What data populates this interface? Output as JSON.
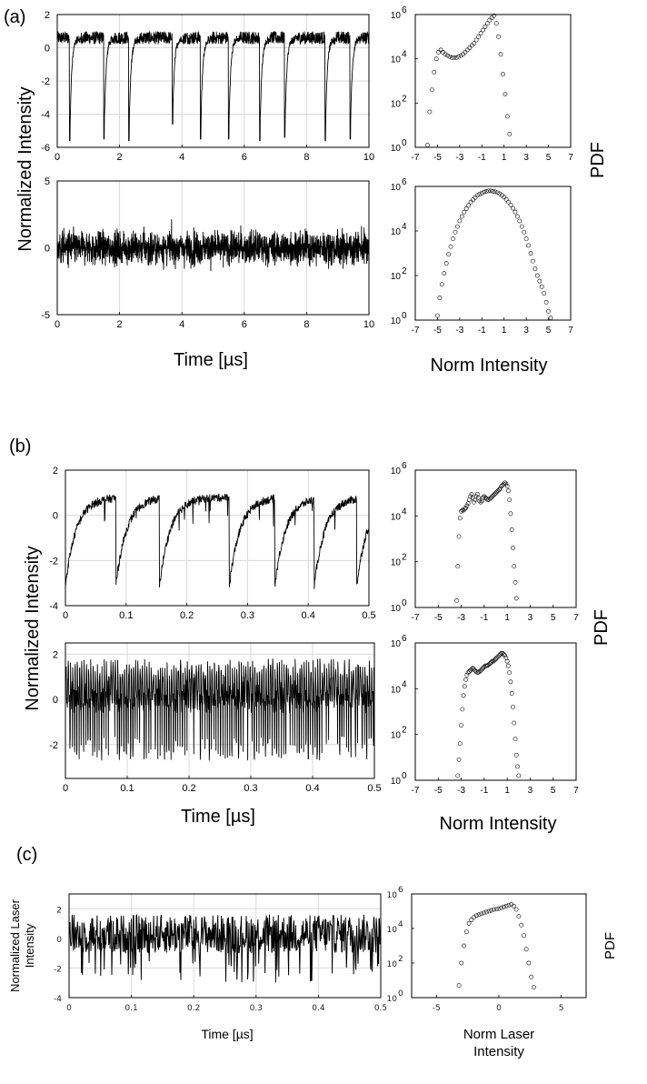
{
  "panels": {
    "a": {
      "label": "(a)",
      "ylabel": "Normalized Intensity",
      "xlabel": "Time [µs]",
      "pdf_xlabel": "Norm Intensity",
      "pdf_ylabel": "PDF"
    },
    "b": {
      "label": "(b)",
      "ylabel": "Normalized Intensity",
      "xlabel": "Time [µs]",
      "pdf_xlabel": "Norm Intensity",
      "pdf_ylabel": "PDF"
    },
    "c": {
      "label": "(c)",
      "ylabel_line1": "Normalized Laser",
      "ylabel_line2": "Intensity",
      "xlabel": "Time [µs]",
      "pdf_xlabel_line1": "Norm Laser",
      "pdf_xlabel_line2": "Intensity",
      "pdf_ylabel": "PDF"
    }
  },
  "chart_data": [
    {
      "id": "a-top-time",
      "type": "line",
      "xlim": [
        0,
        10
      ],
      "ylim": [
        -6,
        2
      ],
      "xticks": [
        "0",
        "2",
        "4",
        "6",
        "8",
        "10"
      ],
      "yticks": [
        "-6",
        "-4",
        "-2",
        "0",
        "2"
      ],
      "baseline": 0.6,
      "noise": 0.3,
      "dropout_times": [
        0.4,
        1.5,
        2.3,
        3.7,
        4.6,
        5.5,
        6.5,
        7.3,
        8.6,
        9.4
      ],
      "dropout_depths": [
        -5.6,
        -5.5,
        -5.6,
        -4.6,
        -5.5,
        -5.5,
        -5.6,
        -5.4,
        -5.6,
        -5.5
      ]
    },
    {
      "id": "a-top-pdf",
      "type": "scatter",
      "yscale": "log",
      "xlim": [
        -7,
        7
      ],
      "ylim": [
        1,
        1000000
      ],
      "xticks": [
        "-7",
        "-5",
        "-3",
        "-1",
        "1",
        "3",
        "5",
        "7"
      ],
      "ytick_exponents": [
        "0",
        "2",
        "4",
        "6"
      ],
      "x": [
        -5.9,
        -5.7,
        -5.5,
        -5.3,
        -5.1,
        -4.9,
        -4.7,
        -4.5,
        -4.3,
        -4.1,
        -3.9,
        -3.7,
        -3.5,
        -3.3,
        -3.1,
        -2.9,
        -2.7,
        -2.5,
        -2.3,
        -2.1,
        -1.9,
        -1.7,
        -1.5,
        -1.3,
        -1.1,
        -0.9,
        -0.7,
        -0.5,
        -0.3,
        -0.1,
        0.1,
        0.3,
        0.5,
        0.7,
        0.9,
        1.1,
        1.3,
        1.5
      ],
      "log10_y": [
        0.1,
        1.6,
        2.6,
        3.4,
        4.0,
        4.3,
        4.4,
        4.3,
        4.2,
        4.15,
        4.1,
        4.05,
        4.05,
        4.05,
        4.1,
        4.15,
        4.2,
        4.3,
        4.4,
        4.5,
        4.6,
        4.7,
        4.85,
        5.0,
        5.15,
        5.3,
        5.45,
        5.6,
        5.75,
        5.85,
        5.95,
        5.6,
        5.0,
        4.2,
        3.3,
        2.4,
        1.4,
        0.6
      ]
    },
    {
      "id": "a-bottom-time",
      "type": "line",
      "xlim": [
        0,
        10
      ],
      "ylim": [
        -5,
        5
      ],
      "xticks": [
        "0",
        "2",
        "4",
        "6",
        "8",
        "10"
      ],
      "yticks": [
        "-5",
        "0",
        "5"
      ],
      "gaussian_noise_std": 1.0,
      "peak_range": [
        -4,
        4
      ]
    },
    {
      "id": "a-bottom-pdf",
      "type": "scatter",
      "yscale": "log",
      "xlim": [
        -7,
        7
      ],
      "ylim": [
        1,
        1000000
      ],
      "xticks": [
        "-7",
        "-5",
        "-3",
        "-1",
        "1",
        "3",
        "5",
        "7"
      ],
      "ytick_exponents": [
        "0",
        "2",
        "4",
        "6"
      ],
      "x": [
        -5.0,
        -4.8,
        -4.6,
        -4.4,
        -4.2,
        -4.0,
        -3.8,
        -3.6,
        -3.4,
        -3.2,
        -3.0,
        -2.8,
        -2.6,
        -2.4,
        -2.2,
        -2.0,
        -1.8,
        -1.6,
        -1.4,
        -1.2,
        -1.0,
        -0.8,
        -0.6,
        -0.4,
        -0.2,
        0.0,
        0.2,
        0.4,
        0.6,
        0.8,
        1.0,
        1.2,
        1.4,
        1.6,
        1.8,
        2.0,
        2.2,
        2.4,
        2.6,
        2.8,
        3.0,
        3.2,
        3.4,
        3.6,
        3.8,
        4.0,
        4.2,
        4.4,
        4.6,
        4.8,
        5.0,
        5.2
      ],
      "log10_y": [
        0.2,
        1.0,
        1.6,
        2.1,
        2.55,
        2.95,
        3.3,
        3.65,
        3.95,
        4.2,
        4.45,
        4.65,
        4.85,
        5.0,
        5.15,
        5.3,
        5.4,
        5.5,
        5.6,
        5.65,
        5.7,
        5.75,
        5.78,
        5.8,
        5.8,
        5.78,
        5.76,
        5.72,
        5.67,
        5.6,
        5.52,
        5.42,
        5.3,
        5.17,
        5.02,
        4.85,
        4.65,
        4.45,
        4.2,
        3.95,
        3.65,
        3.35,
        3.0,
        2.65,
        2.3,
        2.0,
        1.75,
        1.5,
        1.2,
        0.8,
        0.4,
        0.1
      ]
    },
    {
      "id": "b-top-time",
      "type": "line",
      "xlim": [
        0,
        0.5
      ],
      "ylim": [
        -4,
        2
      ],
      "xticks": [
        "0",
        "0.1",
        "0.2",
        "0.3",
        "0.4",
        "0.5"
      ],
      "yticks": [
        "-4",
        "-2",
        "0",
        "2"
      ],
      "pulse_times": [
        0.0,
        0.083,
        0.155,
        0.27,
        0.345,
        0.41,
        0.48
      ],
      "pulse_min": -3.1,
      "plateau": 0.8
    },
    {
      "id": "b-top-pdf",
      "type": "scatter",
      "yscale": "log",
      "xlim": [
        -7,
        7
      ],
      "ylim": [
        1,
        1000000
      ],
      "xticks": [
        "-7",
        "-5",
        "-3",
        "-1",
        "1",
        "3",
        "5",
        "7"
      ],
      "ytick_exponents": [
        "0",
        "2",
        "4",
        "6"
      ],
      "x": [
        -3.4,
        -3.3,
        -3.2,
        -3.1,
        -3.0,
        -2.9,
        -2.8,
        -2.7,
        -2.6,
        -2.5,
        -2.4,
        -2.3,
        -2.2,
        -2.1,
        -2.0,
        -1.9,
        -1.8,
        -1.7,
        -1.6,
        -1.5,
        -1.4,
        -1.3,
        -1.2,
        -1.1,
        -1.0,
        -0.9,
        -0.8,
        -0.7,
        -0.6,
        -0.5,
        -0.4,
        -0.3,
        -0.2,
        -0.1,
        0.0,
        0.1,
        0.2,
        0.3,
        0.4,
        0.5,
        0.6,
        0.7,
        0.8,
        0.9,
        1.0,
        1.1,
        1.2,
        1.3,
        1.4,
        1.5,
        1.6,
        1.7,
        1.8
      ],
      "log10_y": [
        0.3,
        1.8,
        3.1,
        3.9,
        4.2,
        4.25,
        4.25,
        4.3,
        4.35,
        4.45,
        4.55,
        4.7,
        4.85,
        4.95,
        4.8,
        4.6,
        4.7,
        4.85,
        4.95,
        4.8,
        4.65,
        4.6,
        4.65,
        4.8,
        4.85,
        4.8,
        4.75,
        4.7,
        4.72,
        4.75,
        4.8,
        4.85,
        4.9,
        4.95,
        5.0,
        5.05,
        5.1,
        5.15,
        5.2,
        5.3,
        5.35,
        5.4,
        5.45,
        5.4,
        5.3,
        5.1,
        4.7,
        4.1,
        3.4,
        2.6,
        1.8,
        1.1,
        0.4
      ]
    },
    {
      "id": "b-bottom-time",
      "type": "line",
      "xlim": [
        0,
        0.5
      ],
      "ylim": [
        -3.5,
        2.5
      ],
      "xticks": [
        "0",
        "0.1",
        "0.2",
        "0.3",
        "0.4",
        "0.5"
      ],
      "yticks": [
        "-2",
        "0",
        "2"
      ],
      "baseline": 0.6,
      "spike_min": -2.7,
      "spike_count": 130
    },
    {
      "id": "b-bottom-pdf",
      "type": "scatter",
      "yscale": "log",
      "xlim": [
        -7,
        7
      ],
      "ylim": [
        1,
        1000000
      ],
      "xticks": [
        "-7",
        "-5",
        "-3",
        "-1",
        "1",
        "3",
        "5",
        "7"
      ],
      "ytick_exponents": [
        "0",
        "2",
        "4",
        "6"
      ],
      "x": [
        -3.3,
        -3.2,
        -3.1,
        -3.0,
        -2.9,
        -2.8,
        -2.7,
        -2.6,
        -2.5,
        -2.4,
        -2.3,
        -2.2,
        -2.1,
        -2.0,
        -1.9,
        -1.8,
        -1.7,
        -1.6,
        -1.5,
        -1.4,
        -1.3,
        -1.2,
        -1.1,
        -1.0,
        -0.9,
        -0.8,
        -0.7,
        -0.6,
        -0.5,
        -0.4,
        -0.3,
        -0.2,
        -0.1,
        0.0,
        0.1,
        0.2,
        0.3,
        0.4,
        0.5,
        0.6,
        0.7,
        0.8,
        0.9,
        1.0,
        1.1,
        1.2,
        1.3,
        1.4,
        1.5,
        1.6,
        1.7,
        1.8,
        1.9,
        2.0
      ],
      "log10_y": [
        0.2,
        0.9,
        1.6,
        2.4,
        3.1,
        3.7,
        4.1,
        4.4,
        4.6,
        4.7,
        4.75,
        4.8,
        4.85,
        4.9,
        4.85,
        4.8,
        4.75,
        4.7,
        4.72,
        4.75,
        4.8,
        4.85,
        4.9,
        4.95,
        5.0,
        5.0,
        5.02,
        5.05,
        5.1,
        5.15,
        5.2,
        5.2,
        5.25,
        5.3,
        5.35,
        5.4,
        5.45,
        5.5,
        5.55,
        5.55,
        5.5,
        5.45,
        5.35,
        5.2,
        5.0,
        4.7,
        4.3,
        3.8,
        3.2,
        2.5,
        1.8,
        1.1,
        0.6,
        0.2
      ]
    },
    {
      "id": "c-time",
      "type": "line",
      "xlim": [
        0,
        0.5
      ],
      "ylim": [
        -4,
        3
      ],
      "xticks": [
        "0",
        "0.1",
        "0.2",
        "0.3",
        "0.4",
        "0.5"
      ],
      "yticks": [
        "-4",
        "-2",
        "0",
        "2"
      ],
      "baseline": 0.3,
      "noise_range": [
        -3,
        2
      ]
    },
    {
      "id": "c-pdf",
      "type": "scatter",
      "yscale": "log",
      "xlim": [
        -7,
        7
      ],
      "ylim": [
        1,
        1000000
      ],
      "xticks": [
        "-5",
        "0",
        "5"
      ],
      "ytick_exponents": [
        "0",
        "2",
        "4",
        "6"
      ],
      "x": [
        -3.2,
        -3.0,
        -2.8,
        -2.6,
        -2.4,
        -2.2,
        -2.0,
        -1.8,
        -1.6,
        -1.4,
        -1.2,
        -1.0,
        -0.8,
        -0.6,
        -0.4,
        -0.2,
        0.0,
        0.2,
        0.4,
        0.6,
        0.8,
        1.0,
        1.2,
        1.4,
        1.6,
        1.8,
        2.0,
        2.2,
        2.4,
        2.6,
        2.8
      ],
      "log10_y": [
        0.7,
        2.0,
        3.0,
        3.8,
        4.3,
        4.5,
        4.65,
        4.75,
        4.8,
        4.85,
        4.9,
        4.95,
        5.0,
        5.05,
        5.1,
        5.12,
        5.15,
        5.2,
        5.25,
        5.3,
        5.35,
        5.4,
        5.3,
        5.1,
        4.7,
        4.2,
        3.6,
        2.8,
        2.0,
        1.2,
        0.6
      ]
    }
  ]
}
